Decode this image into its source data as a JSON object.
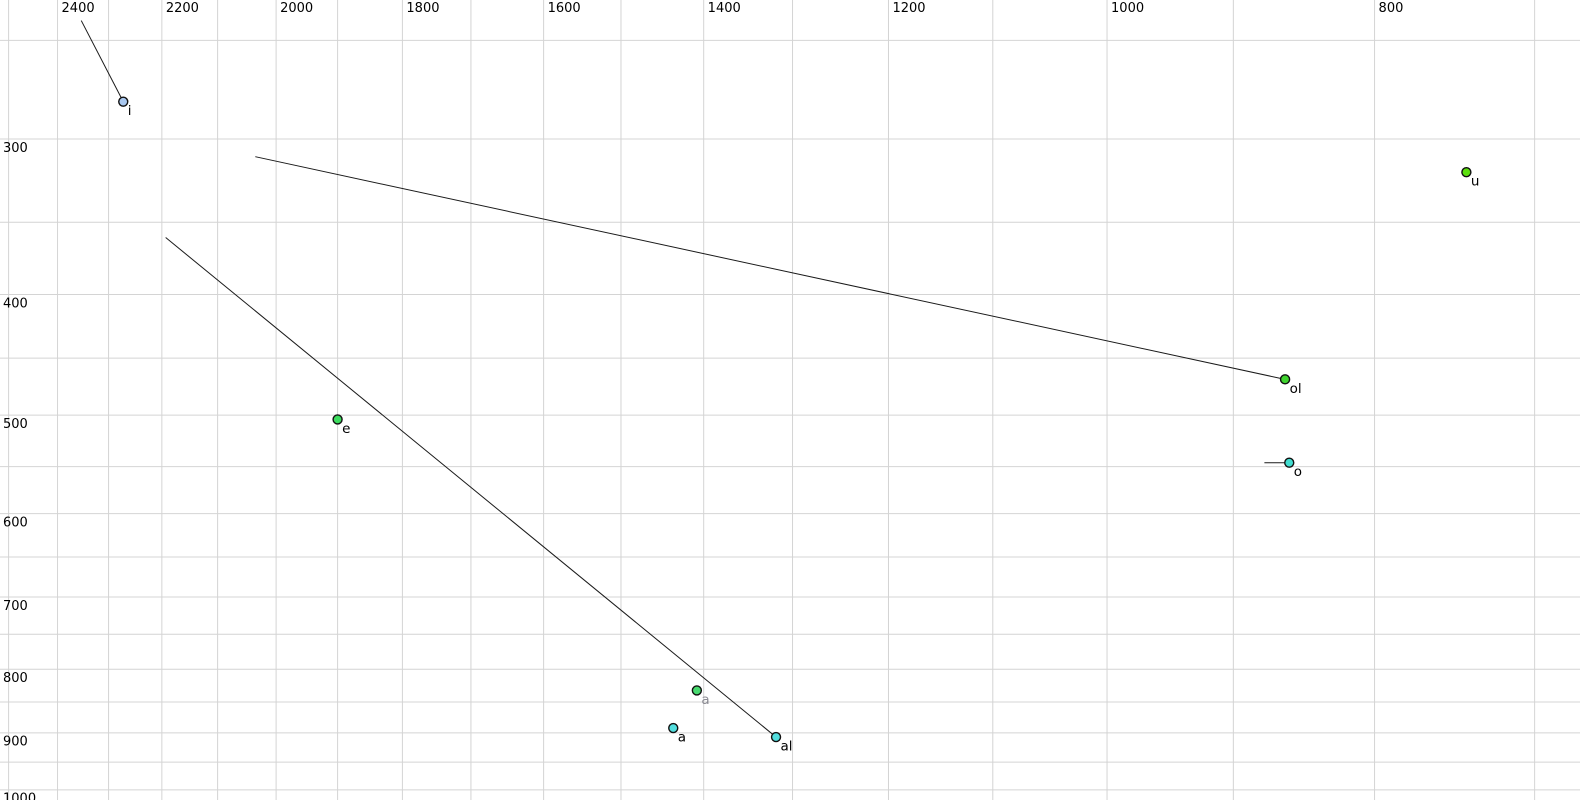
{
  "chart_data": {
    "type": "scatter",
    "title": "",
    "x_axis": {
      "position": "top",
      "scale": "log",
      "direction": "reversed",
      "min": 674,
      "max": 2518,
      "tick_labels": [
        2400,
        2200,
        2000,
        1800,
        1600,
        1400,
        1200,
        1000,
        800
      ],
      "gridline_step": 100
    },
    "y_axis": {
      "position": "left",
      "scale": "log",
      "direction": "down",
      "min": 232,
      "max": 1019,
      "tick_labels": [
        300,
        400,
        500,
        600,
        700,
        800,
        900,
        1000
      ],
      "gridline_step": 50
    },
    "grid": {
      "show": true,
      "color": "#d4d4d4"
    },
    "tick_label_color": "#000000",
    "background": "#ffffff",
    "points": [
      {
        "label": "i",
        "f2": 2272,
        "f1": 280,
        "fill": "#a9c8f0",
        "label_color": "#000000",
        "trail": {
          "f2": 2353,
          "f1": 241
        }
      },
      {
        "label": "u",
        "f2": 741,
        "f1": 319,
        "fill": "#5ce00e",
        "label_color": "#000000",
        "trail": null
      },
      {
        "label": "ol",
        "f2": 862,
        "f1": 468,
        "fill": "#3fd32e",
        "label_color": "#000000",
        "trail": {
          "f2": 2035,
          "f1": 310
        }
      },
      {
        "label": "o",
        "f2": 859,
        "f1": 546,
        "fill": "#41ddd0",
        "label_color": "#000000",
        "trail": {
          "f2": 877,
          "f1": 546
        }
      },
      {
        "label": "e",
        "f2": 1900,
        "f1": 504,
        "fill": "#3cdc5e",
        "label_color": "#000000",
        "trail": null
      },
      {
        "label": "a",
        "f2": 1408,
        "f1": 832,
        "fill": "#47d96f",
        "label_color": "#8a8a92",
        "trail": null
      },
      {
        "label": "a",
        "f2": 1436,
        "f1": 892,
        "fill": "#52dede",
        "label_color": "#000000",
        "trail": null
      },
      {
        "label": "al",
        "f2": 1318,
        "f1": 907,
        "fill": "#52dede",
        "label_color": "#000000",
        "trail": {
          "f2": 2193,
          "f1": 360
        }
      }
    ],
    "point_style": {
      "radius": 4.5,
      "stroke": "#101010",
      "stroke_width": 1.4
    },
    "trail_style": {
      "color": "#1a1a1a",
      "width": 1
    },
    "font": {
      "tick_size": 13,
      "point_label_size": 13.5
    }
  }
}
